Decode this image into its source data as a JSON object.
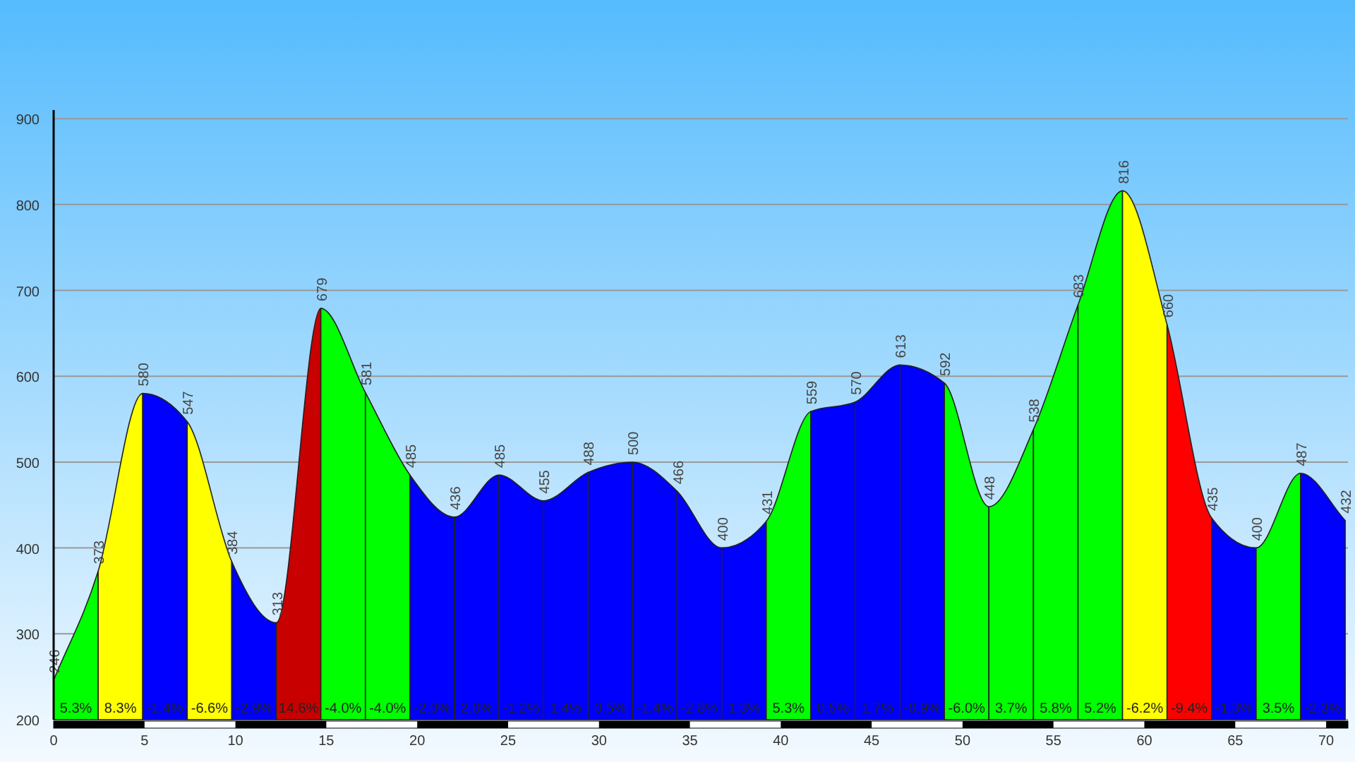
{
  "chart_data": {
    "type": "area",
    "series": [
      {
        "color": "#00ff00",
        "x": [
          0,
          2.45
        ],
        "values": [
          246,
          373
        ],
        "value_labels": [
          "246",
          "373"
        ]
      },
      {
        "color": "#ffff00",
        "x": [
          2.45,
          4.9
        ],
        "values": [
          373,
          580
        ],
        "value_labels": [
          null,
          "580"
        ]
      },
      {
        "color": "#0000ff",
        "x": [
          4.9,
          7.35
        ],
        "values": [
          580,
          547
        ],
        "value_labels": [
          null,
          "547"
        ]
      },
      {
        "color": "#ffff00",
        "x": [
          7.35,
          9.8
        ],
        "values": [
          547,
          384
        ],
        "value_labels": [
          null,
          "384"
        ]
      },
      {
        "color": "#0000ff",
        "x": [
          9.8,
          12.25
        ],
        "values": [
          384,
          313
        ],
        "value_labels": [
          null,
          "313"
        ]
      },
      {
        "color": "#c80000",
        "x": [
          12.25,
          14.7
        ],
        "values": [
          313,
          679
        ],
        "value_labels": [
          null,
          "679"
        ]
      },
      {
        "color": "#00ff00",
        "x": [
          14.7,
          17.15
        ],
        "values": [
          679,
          581
        ],
        "value_labels": [
          null,
          "581"
        ]
      },
      {
        "color": "#00ff00",
        "x": [
          17.15,
          19.6
        ],
        "values": [
          581,
          485
        ],
        "value_labels": [
          null,
          "485"
        ]
      },
      {
        "color": "#0000ff",
        "x": [
          19.6,
          22.05
        ],
        "values": [
          485,
          436
        ],
        "value_labels": [
          null,
          "436"
        ]
      },
      {
        "color": "#0000ff",
        "x": [
          22.05,
          24.5
        ],
        "values": [
          436,
          485
        ],
        "value_labels": [
          null,
          "485"
        ]
      },
      {
        "color": "#0000ff",
        "x": [
          24.5,
          26.95
        ],
        "values": [
          485,
          455
        ],
        "value_labels": [
          null,
          "455"
        ]
      },
      {
        "color": "#0000ff",
        "x": [
          26.95,
          29.4
        ],
        "values": [
          455,
          488
        ],
        "value_labels": [
          null,
          "488"
        ]
      },
      {
        "color": "#0000ff",
        "x": [
          29.4,
          31.85
        ],
        "values": [
          488,
          500
        ],
        "value_labels": [
          null,
          "500"
        ]
      },
      {
        "color": "#0000ff",
        "x": [
          31.85,
          34.3
        ],
        "values": [
          500,
          466
        ],
        "value_labels": [
          null,
          "466"
        ]
      },
      {
        "color": "#0000ff",
        "x": [
          34.3,
          36.75
        ],
        "values": [
          466,
          400
        ],
        "value_labels": [
          null,
          "400"
        ]
      },
      {
        "color": "#0000ff",
        "x": [
          36.75,
          39.2
        ],
        "values": [
          400,
          431
        ],
        "value_labels": [
          null,
          "431"
        ]
      },
      {
        "color": "#00ff00",
        "x": [
          39.2,
          41.65
        ],
        "values": [
          431,
          559
        ],
        "value_labels": [
          null,
          "559"
        ]
      },
      {
        "color": "#0000ff",
        "x": [
          41.65,
          44.1
        ],
        "values": [
          559,
          570
        ],
        "value_labels": [
          null,
          "570"
        ]
      },
      {
        "color": "#0000ff",
        "x": [
          44.1,
          46.55
        ],
        "values": [
          570,
          613
        ],
        "value_labels": [
          null,
          "613"
        ]
      },
      {
        "color": "#0000ff",
        "x": [
          46.55,
          49
        ],
        "values": [
          613,
          592
        ],
        "value_labels": [
          null,
          "592"
        ]
      },
      {
        "color": "#00ff00",
        "x": [
          49,
          51.45
        ],
        "values": [
          592,
          448
        ],
        "value_labels": [
          null,
          "448"
        ]
      },
      {
        "color": "#00ff00",
        "x": [
          51.45,
          53.9
        ],
        "values": [
          448,
          538
        ],
        "value_labels": [
          null,
          "538"
        ]
      },
      {
        "color": "#00ff00",
        "x": [
          53.9,
          56.35
        ],
        "values": [
          538,
          683
        ],
        "value_labels": [
          null,
          "683"
        ]
      },
      {
        "color": "#00ff00",
        "x": [
          56.35,
          58.8
        ],
        "values": [
          683,
          816
        ],
        "value_labels": [
          null,
          "816"
        ]
      },
      {
        "color": "#ffff00",
        "x": [
          58.8,
          61.25
        ],
        "values": [
          816,
          660
        ],
        "value_labels": [
          null,
          "660"
        ]
      },
      {
        "color": "#ff0000",
        "x": [
          61.25,
          63.7
        ],
        "values": [
          660,
          435
        ],
        "value_labels": [
          null,
          "435"
        ]
      },
      {
        "color": "#0000ff",
        "x": [
          63.7,
          66.15
        ],
        "values": [
          435,
          400
        ],
        "value_labels": [
          null,
          "400"
        ]
      },
      {
        "color": "#00ff00",
        "x": [
          66.15,
          68.6
        ],
        "values": [
          400,
          487
        ],
        "value_labels": [
          null,
          "487"
        ]
      },
      {
        "color": "#0000ff",
        "x": [
          68.6,
          71.05
        ],
        "values": [
          487,
          432
        ],
        "value_labels": [
          null,
          "432"
        ]
      }
    ],
    "annotations": [
      "5.3%",
      "8.3%",
      "-1.4%",
      "-6.6%",
      "-2.9%",
      "14.6%",
      "-4.0%",
      "-4.0%",
      "-2.0%",
      "2.0%",
      "-1.2%",
      "1.4%",
      "0.5%",
      "-1.4%",
      "-2.8%",
      "1.3%",
      "5.3%",
      "0.5%",
      "1.7%",
      "-0.9%",
      "-6.0%",
      "3.7%",
      "5.8%",
      "5.2%",
      "-6.2%",
      "-9.4%",
      "-1.3%",
      "3.5%",
      "-2.3%"
    ],
    "xlim": [
      0,
      71.2
    ],
    "ylim": [
      200,
      910
    ],
    "xticks": [
      0,
      5,
      10,
      15,
      20,
      25,
      30,
      35,
      40,
      45,
      50,
      55,
      60,
      65,
      70
    ],
    "yticks": [
      200,
      300,
      400,
      500,
      600,
      700,
      800,
      900
    ],
    "grid": "y"
  }
}
